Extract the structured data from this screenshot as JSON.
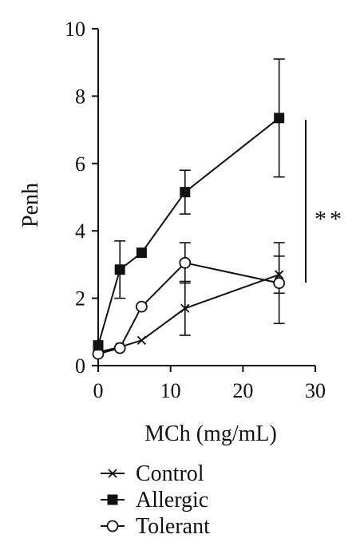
{
  "chart_data": {
    "type": "line",
    "xlabel": "MCh (mg/mL)",
    "ylabel": "Penh",
    "xlim": [
      0,
      30
    ],
    "ylim": [
      0,
      10
    ],
    "xticks": [
      "0",
      "10",
      "20",
      "30"
    ],
    "yticks": [
      "0",
      "2",
      "4",
      "6",
      "8",
      "10"
    ],
    "x": [
      0,
      3,
      6,
      12,
      25
    ],
    "series": [
      {
        "name": "Control",
        "marker": "x",
        "values": [
          0.4,
          0.55,
          0.75,
          1.7,
          2.7
        ],
        "errors": [
          null,
          null,
          null,
          0.8,
          0.55
        ]
      },
      {
        "name": "Allergic",
        "marker": "filled-square",
        "values": [
          0.6,
          2.85,
          3.35,
          5.15,
          7.35
        ],
        "errors": [
          null,
          0.85,
          null,
          0.65,
          1.75
        ]
      },
      {
        "name": "Tolerant",
        "marker": "open-circle",
        "values": [
          0.35,
          0.52,
          1.75,
          3.05,
          2.45
        ],
        "errors": [
          null,
          null,
          null,
          0.6,
          1.2
        ]
      }
    ],
    "significance": "**",
    "legend_position": "bottom"
  }
}
